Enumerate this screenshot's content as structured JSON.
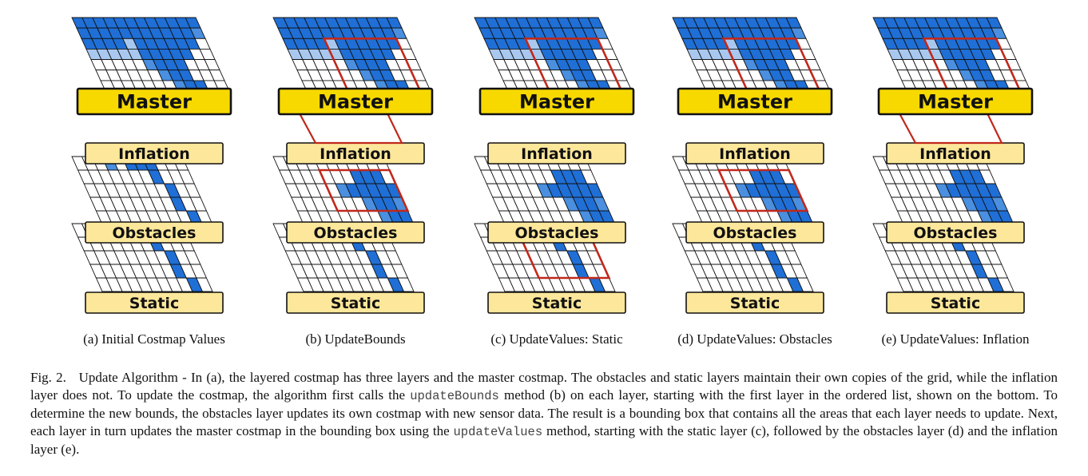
{
  "figure": {
    "layer_labels": {
      "master": "Master",
      "inflation": "Inflation",
      "obstacles": "Obstacles",
      "static": "Static"
    },
    "colors": {
      "cell_dark": "#1f6fd6",
      "cell_mid": "#4a8fe0",
      "cell_light": "#a9c8ef",
      "label_fill": "#fde79a",
      "master_fill": "#f7d900",
      "bounds_box": "#c0281b"
    },
    "panels": [
      {
        "id": "a",
        "caption": "(a) Initial Costmap Values",
        "highlight": "none"
      },
      {
        "id": "b",
        "caption": "(b) UpdateBounds",
        "highlight": "bounds"
      },
      {
        "id": "c",
        "caption": "(c) UpdateValues: Static",
        "highlight": "static"
      },
      {
        "id": "d",
        "caption": "(d) UpdateValues: Obstacles",
        "highlight": "obstacles"
      },
      {
        "id": "e",
        "caption": "(e) UpdateValues: Inflation",
        "highlight": "inflation"
      }
    ]
  },
  "caption": {
    "label": "Fig. 2.",
    "part1": "Update Algorithm - In (a), the layered costmap has three layers and the master costmap. The obstacles and static layers maintain their own copies of the grid, while the inflation layer does not. To update the costmap, the algorithm first calls the",
    "code1": "updateBounds",
    "part2": "method (b) on each layer, starting with the first layer in the ordered list, shown on the bottom. To determine the new bounds, the obstacles layer updates its own costmap with new sensor data. The result is a bounding box that contains all the areas that each layer needs to update. Next, each layer in turn updates the master costmap in the bounding box using the",
    "code2": "updateValues",
    "part3": "method, starting with the static layer (c), followed by the obstacles layer (d) and the inflation layer (e)."
  }
}
